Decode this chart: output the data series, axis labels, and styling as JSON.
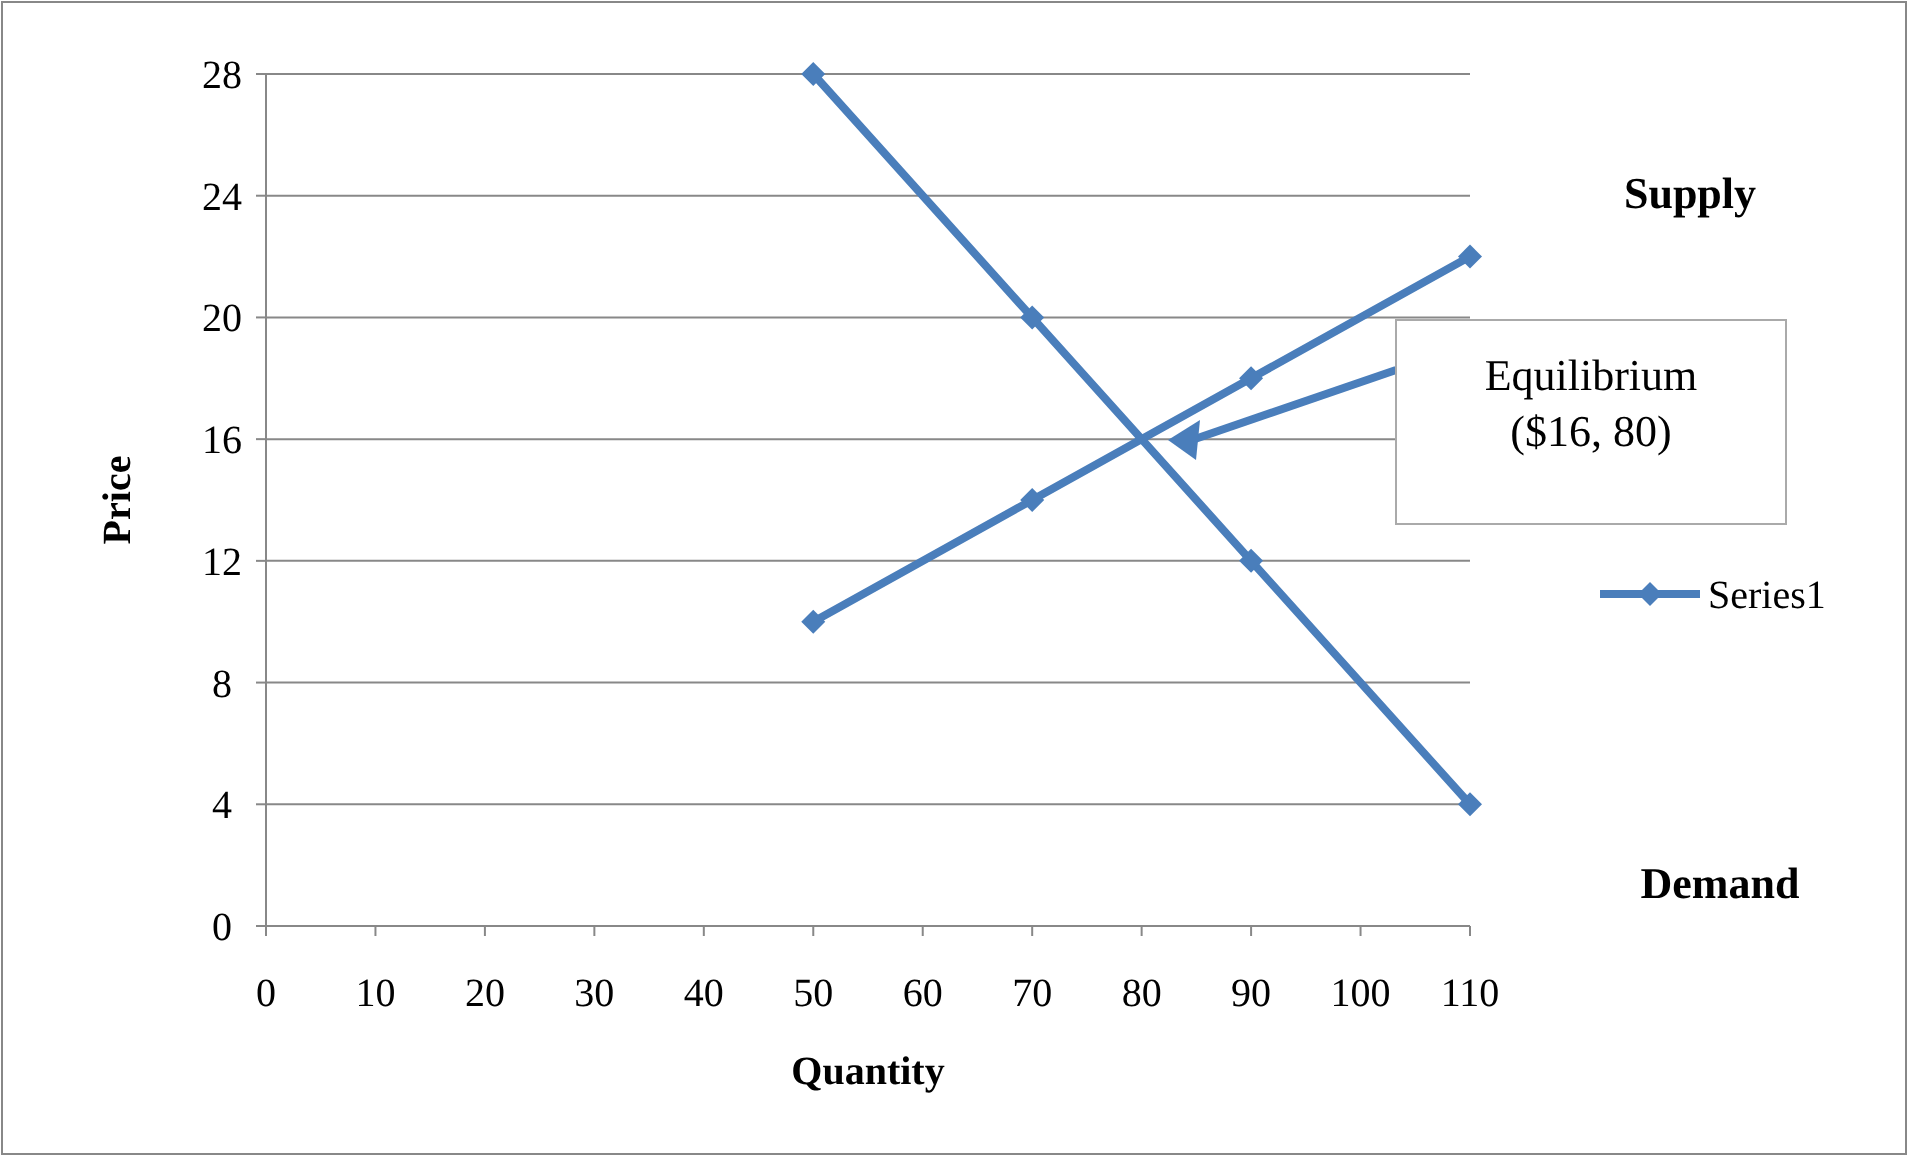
{
  "chart_data": {
    "type": "line",
    "xlabel": "Quantity",
    "ylabel": "Price",
    "xlim": [
      0,
      110
    ],
    "xticks": [
      0,
      10,
      20,
      30,
      40,
      50,
      60,
      70,
      80,
      90,
      100,
      110
    ],
    "ylim": [
      0,
      28
    ],
    "yticks": [
      0,
      4,
      8,
      12,
      16,
      20,
      24,
      28
    ],
    "grid": "y",
    "legend": "right",
    "marker": "diamond",
    "line_style": "solid",
    "series": [
      {
        "name": "Series1",
        "color": "#4a7ebb",
        "x": [
          50,
          70,
          90,
          110
        ],
        "values": [
          28,
          20,
          12,
          4
        ]
      },
      {
        "color": "#4a7ebb",
        "x": [
          50,
          70,
          90,
          110
        ],
        "values": [
          10,
          14,
          18,
          22
        ]
      }
    ],
    "annotations": [
      "Supply",
      "Demand",
      "Equilibrium\n($16, 80)"
    ]
  }
}
